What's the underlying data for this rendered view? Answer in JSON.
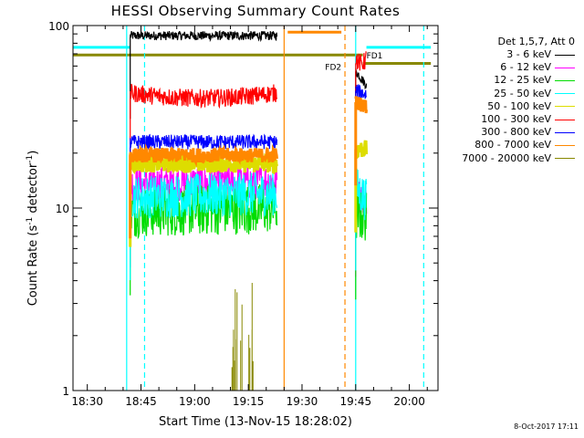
{
  "chart_data": {
    "type": "line",
    "title": "HESSI Observing Summary Count Rates",
    "xlabel": "Start Time (13-Nov-15 18:28:02)",
    "ylabel_main": "Count Rate (s",
    "ylabel_exp1": "-1",
    "ylabel_mid": " detector",
    "ylabel_exp2": "-1",
    "ylabel_end": ")",
    "y_scale": "log",
    "xlim": [
      "18:26",
      "20:08"
    ],
    "ylim": [
      1,
      100
    ],
    "x_ticks": [
      "18:30",
      "18:45",
      "19:00",
      "19:15",
      "19:30",
      "19:45",
      "20:00"
    ],
    "y_ticks": [
      "1",
      "10",
      "100"
    ],
    "legend_title": "Det 1,5,7, Att 0",
    "legend_position": "top-right",
    "series": [
      {
        "name": "3 - 6 keV",
        "color": "#000000",
        "segments": [
          {
            "x": [
              "18:42",
              "19:23"
            ],
            "level": 88,
            "level_end": 88
          },
          {
            "x": [
              "19:45",
              "19:48"
            ],
            "level": 56,
            "level_end": 47
          }
        ]
      },
      {
        "name": "6 - 12 keV",
        "color": "#ff00ff",
        "segments": [
          {
            "x": [
              "18:42",
              "19:23"
            ],
            "level": 13.5,
            "level_end": 14
          },
          {
            "x": [
              "19:45",
              "19:48"
            ],
            "level": 12,
            "level_end": 11
          }
        ]
      },
      {
        "name": "12 - 25 keV",
        "color": "#00dd00",
        "segments": [
          {
            "x": [
              "18:42",
              "19:23"
            ],
            "level": 9.5,
            "level_end": 10
          },
          {
            "x": [
              "19:45",
              "19:48"
            ],
            "level": 9,
            "level_end": 9
          }
        ]
      },
      {
        "name": "25 - 50 keV",
        "color": "#00ffff",
        "segments": [
          {
            "x": [
              "18:42",
              "19:23"
            ],
            "level": 11.5,
            "level_end": 12
          },
          {
            "x": [
              "19:45",
              "19:48"
            ],
            "level": 13,
            "level_end": 11
          }
        ]
      },
      {
        "name": "50 - 100 keV",
        "color": "#dddd00",
        "segments": [
          {
            "x": [
              "18:42",
              "19:23"
            ],
            "level": 17.5,
            "level_end": 17.5
          },
          {
            "x": [
              "19:45",
              "19:48"
            ],
            "level": 21,
            "level_end": 21
          }
        ]
      },
      {
        "name": "100 - 300 keV",
        "color": "#ff0000",
        "segments": [
          {
            "x": [
              "18:42",
              "19:23"
            ],
            "level": 40,
            "level_end": 42
          },
          {
            "x": [
              "19:45",
              "19:48"
            ],
            "level": 62,
            "level_end": 58
          }
        ]
      },
      {
        "name": "300 - 800 keV",
        "color": "#0000ff",
        "segments": [
          {
            "x": [
              "18:42",
              "19:23"
            ],
            "level": 23,
            "level_end": 23
          },
          {
            "x": [
              "19:45",
              "19:48"
            ],
            "level": 44,
            "level_end": 42
          }
        ]
      },
      {
        "name": "800 - 7000 keV",
        "color": "#ff8800",
        "segments": [
          {
            "x": [
              "18:42",
              "19:23"
            ],
            "level": 19.5,
            "level_end": 19.5
          },
          {
            "x": [
              "19:45",
              "19:48"
            ],
            "level": 38,
            "level_end": 36
          }
        ]
      },
      {
        "name": "7000 - 20000 keV",
        "color": "#888800",
        "segments": [
          {
            "x": [
              "19:10",
              "19:17"
            ],
            "level": 1.6,
            "level_end": 1.6
          }
        ]
      }
    ],
    "flags": [
      {
        "kind": "hline",
        "color": "#00ffff",
        "x": [
          "18:26",
          "18:42"
        ],
        "y": 76
      },
      {
        "kind": "hline",
        "color": "#00ffff",
        "x": [
          "19:48",
          "20:06"
        ],
        "y": 76
      },
      {
        "kind": "hline",
        "color": "#ff8800",
        "x": [
          "19:26",
          "19:41"
        ],
        "y": 92
      },
      {
        "kind": "hline",
        "color": "#888800",
        "x": [
          "18:26",
          "19:47"
        ],
        "y": 69
      },
      {
        "kind": "hline",
        "color": "#888800",
        "x": [
          "19:47",
          "20:06"
        ],
        "y": 62
      },
      {
        "kind": "vline",
        "color": "#00ffff",
        "x": "18:41",
        "dashed": false
      },
      {
        "kind": "vline",
        "color": "#00ffff",
        "x": "18:46",
        "dashed": true
      },
      {
        "kind": "vline",
        "color": "#ff8800",
        "x": "19:25",
        "dashed": false
      },
      {
        "kind": "vline",
        "color": "#ff8800",
        "x": "19:42",
        "dashed": true
      },
      {
        "kind": "vline",
        "color": "#00ffff",
        "x": "19:45",
        "dashed": false
      },
      {
        "kind": "vline",
        "color": "#00ffff",
        "x": "20:04",
        "dashed": true
      }
    ],
    "annotations": [
      {
        "text": "FD2",
        "x": "19:41",
        "y": 60,
        "color": "#888800"
      },
      {
        "text": "FD1",
        "x": "19:48",
        "y": 69,
        "color": "#888800"
      }
    ]
  },
  "date_stamp": "8-Oct-2017 17:11"
}
